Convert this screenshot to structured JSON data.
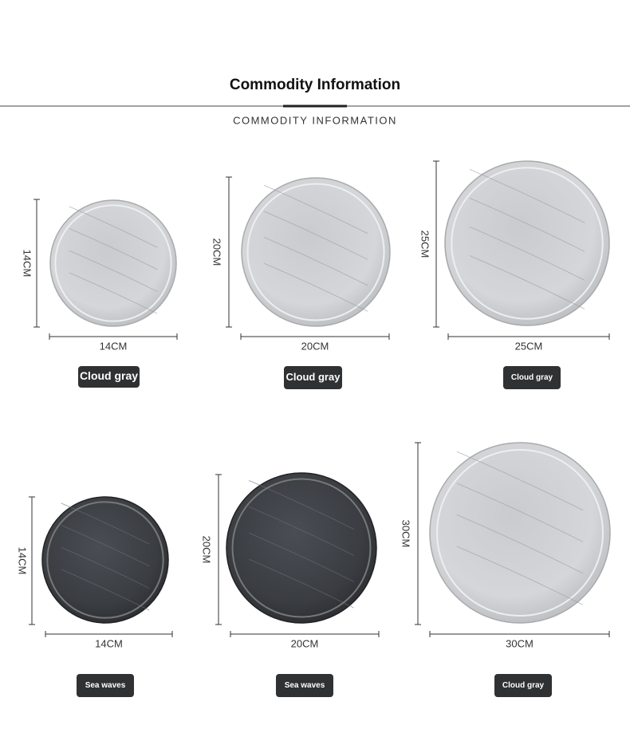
{
  "header": {
    "title": "Commodity Information",
    "subtitle": "COMMODITY INFORMATION"
  },
  "items": [
    {
      "height_label": "14CM",
      "width_label": "14CM",
      "badge": "Cloud gray"
    },
    {
      "height_label": "20CM",
      "width_label": "20CM",
      "badge": "Cloud gray"
    },
    {
      "height_label": "25CM",
      "width_label": "25CM",
      "badge": "Cloud gray"
    },
    {
      "height_label": "14CM",
      "width_label": "14CM",
      "badge": "Sea waves"
    },
    {
      "height_label": "20CM",
      "width_label": "20CM",
      "badge": "Sea waves"
    },
    {
      "height_label": "30CM",
      "width_label": "30CM",
      "badge": "Cloud gray"
    }
  ]
}
